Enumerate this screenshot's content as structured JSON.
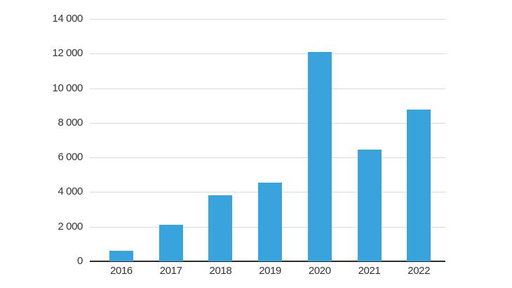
{
  "chart_data": {
    "type": "bar",
    "title": "",
    "xlabel": "",
    "ylabel": "",
    "categories": [
      "2016",
      "2017",
      "2018",
      "2019",
      "2020",
      "2021",
      "2022"
    ],
    "values": [
      600,
      2100,
      3800,
      4550,
      12100,
      6450,
      8750
    ],
    "ylim": [
      0,
      14000
    ],
    "ytick_interval": 2000,
    "ytick_labels": [
      "0",
      "2 000",
      "4 000",
      "6 000",
      "8 000",
      "10 000",
      "12 000",
      "14 000"
    ],
    "grid": "horizontal",
    "legend": "none",
    "colors": {
      "bar": "#38a3dc",
      "gridline": "#d9d9d9",
      "axis_line": "#2b2b2b",
      "tick_label": "#333333",
      "background": "#ffffff"
    }
  }
}
